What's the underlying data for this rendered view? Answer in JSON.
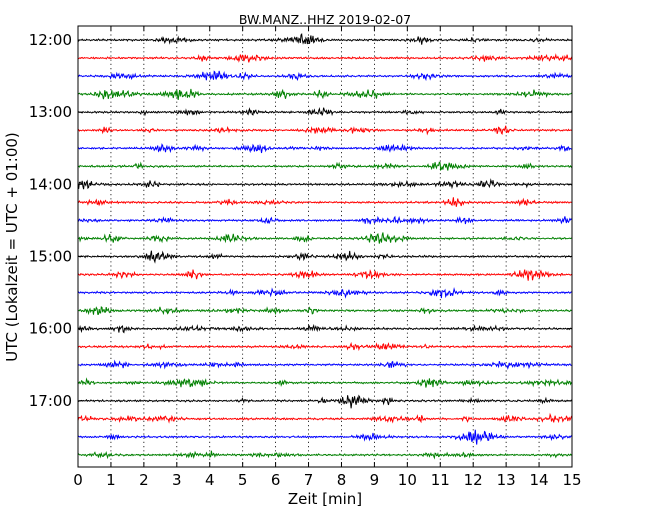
{
  "chart_data": {
    "type": "line",
    "title": "BW.MANZ..HHZ 2019-02-07",
    "xlabel": "Zeit  [min]",
    "ylabel": "UTC (Lokalzeit = UTC + 01:00)",
    "xlim": [
      0,
      15
    ],
    "x_ticks": [
      "0",
      "1",
      "2",
      "3",
      "4",
      "5",
      "6",
      "7",
      "8",
      "9",
      "10",
      "11",
      "12",
      "13",
      "14",
      "15"
    ],
    "y_tick_labels": [
      "12:00",
      "13:00",
      "14:00",
      "15:00",
      "16:00",
      "17:00"
    ],
    "x_grid": "dotted",
    "trace_interval_min": 15,
    "trace_colors": [
      "#000000",
      "#ff0000",
      "#0000ff",
      "#008000"
    ],
    "series_start_times": [
      "12:00",
      "12:15",
      "12:30",
      "12:45",
      "13:00",
      "13:15",
      "13:30",
      "13:45",
      "14:00",
      "14:15",
      "14:30",
      "14:45",
      "15:00",
      "15:15",
      "15:30",
      "15:45",
      "16:00",
      "16:15",
      "16:30",
      "16:45",
      "17:00",
      "17:15",
      "17:30",
      "17:45"
    ]
  }
}
